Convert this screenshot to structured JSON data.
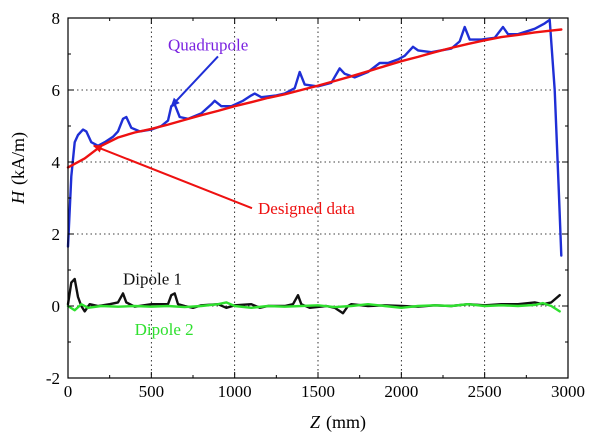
{
  "chart_data": {
    "type": "line",
    "xlabel": {
      "symbol": "Z",
      "unit": "(mm)"
    },
    "ylabel": {
      "symbol": "H",
      "unit": "(kA/m)"
    },
    "xlim": [
      0,
      3000
    ],
    "ylim": [
      -2,
      8
    ],
    "xticks": [
      0,
      500,
      1000,
      1500,
      2000,
      2500,
      3000
    ],
    "yticks": [
      -2,
      0,
      2,
      4,
      6,
      8
    ],
    "x_tick_labels": [
      "0",
      "500",
      "1000",
      "1500",
      "2000",
      "2500",
      "3000"
    ],
    "y_tick_labels": [
      "-2",
      "0",
      "2",
      "4",
      "6",
      "8"
    ],
    "grid": {
      "vertical": true,
      "horizontal": true,
      "style": "dotted",
      "vertical_at": [
        500,
        1000,
        1500,
        2000,
        2500
      ],
      "horizontal_at": [
        0,
        2,
        4,
        6
      ]
    },
    "series": [
      {
        "name": "Quadrupole",
        "color": "#1f2fd6",
        "points": [
          [
            0,
            1.65
          ],
          [
            20,
            3.6
          ],
          [
            40,
            4.55
          ],
          [
            60,
            4.75
          ],
          [
            90,
            4.9
          ],
          [
            110,
            4.85
          ],
          [
            140,
            4.55
          ],
          [
            180,
            4.45
          ],
          [
            220,
            4.55
          ],
          [
            270,
            4.7
          ],
          [
            300,
            4.85
          ],
          [
            330,
            5.2
          ],
          [
            350,
            5.25
          ],
          [
            380,
            4.95
          ],
          [
            430,
            4.85
          ],
          [
            500,
            4.9
          ],
          [
            560,
            5.0
          ],
          [
            600,
            5.15
          ],
          [
            620,
            5.55
          ],
          [
            640,
            5.6
          ],
          [
            670,
            5.25
          ],
          [
            720,
            5.2
          ],
          [
            800,
            5.35
          ],
          [
            860,
            5.6
          ],
          [
            880,
            5.7
          ],
          [
            920,
            5.55
          ],
          [
            980,
            5.55
          ],
          [
            1050,
            5.7
          ],
          [
            1100,
            5.85
          ],
          [
            1120,
            5.9
          ],
          [
            1160,
            5.8
          ],
          [
            1250,
            5.85
          ],
          [
            1300,
            5.9
          ],
          [
            1360,
            6.05
          ],
          [
            1390,
            6.5
          ],
          [
            1420,
            6.15
          ],
          [
            1500,
            6.1
          ],
          [
            1580,
            6.2
          ],
          [
            1630,
            6.6
          ],
          [
            1660,
            6.45
          ],
          [
            1720,
            6.35
          ],
          [
            1800,
            6.5
          ],
          [
            1870,
            6.75
          ],
          [
            1920,
            6.75
          ],
          [
            1980,
            6.85
          ],
          [
            2020,
            6.95
          ],
          [
            2070,
            7.2
          ],
          [
            2100,
            7.1
          ],
          [
            2180,
            7.05
          ],
          [
            2300,
            7.15
          ],
          [
            2350,
            7.35
          ],
          [
            2380,
            7.75
          ],
          [
            2410,
            7.4
          ],
          [
            2480,
            7.4
          ],
          [
            2560,
            7.45
          ],
          [
            2610,
            7.75
          ],
          [
            2640,
            7.55
          ],
          [
            2700,
            7.55
          ],
          [
            2800,
            7.7
          ],
          [
            2860,
            7.85
          ],
          [
            2890,
            7.95
          ],
          [
            2920,
            6.0
          ],
          [
            2945,
            3.2
          ],
          [
            2960,
            1.4
          ]
        ]
      },
      {
        "name": "Designed data",
        "color": "#ee1111",
        "points": [
          [
            0,
            3.85
          ],
          [
            100,
            4.1
          ],
          [
            200,
            4.45
          ],
          [
            300,
            4.68
          ],
          [
            400,
            4.82
          ],
          [
            500,
            4.92
          ],
          [
            600,
            5.04
          ],
          [
            700,
            5.17
          ],
          [
            800,
            5.3
          ],
          [
            900,
            5.42
          ],
          [
            1000,
            5.55
          ],
          [
            1100,
            5.66
          ],
          [
            1200,
            5.78
          ],
          [
            1300,
            5.88
          ],
          [
            1400,
            6.0
          ],
          [
            1500,
            6.12
          ],
          [
            1600,
            6.25
          ],
          [
            1700,
            6.38
          ],
          [
            1800,
            6.52
          ],
          [
            1900,
            6.66
          ],
          [
            2000,
            6.8
          ],
          [
            2100,
            6.92
          ],
          [
            2200,
            7.05
          ],
          [
            2300,
            7.17
          ],
          [
            2400,
            7.28
          ],
          [
            2500,
            7.38
          ],
          [
            2600,
            7.47
          ],
          [
            2700,
            7.53
          ],
          [
            2800,
            7.6
          ],
          [
            2900,
            7.65
          ],
          [
            2960,
            7.68
          ]
        ]
      },
      {
        "name": "Dipole 1",
        "color": "#111111",
        "points": [
          [
            0,
            0.05
          ],
          [
            20,
            0.65
          ],
          [
            40,
            0.75
          ],
          [
            60,
            0.25
          ],
          [
            80,
            0.0
          ],
          [
            100,
            -0.15
          ],
          [
            130,
            0.05
          ],
          [
            180,
            0.0
          ],
          [
            250,
            0.05
          ],
          [
            300,
            0.1
          ],
          [
            330,
            0.35
          ],
          [
            350,
            0.1
          ],
          [
            400,
            -0.02
          ],
          [
            500,
            0.05
          ],
          [
            600,
            0.05
          ],
          [
            620,
            0.3
          ],
          [
            640,
            0.35
          ],
          [
            660,
            0.05
          ],
          [
            700,
            0.0
          ],
          [
            750,
            -0.05
          ],
          [
            800,
            0.02
          ],
          [
            900,
            0.05
          ],
          [
            950,
            -0.05
          ],
          [
            1000,
            0.02
          ],
          [
            1100,
            0.05
          ],
          [
            1150,
            -0.05
          ],
          [
            1200,
            0.0
          ],
          [
            1300,
            0.0
          ],
          [
            1350,
            0.05
          ],
          [
            1380,
            0.3
          ],
          [
            1400,
            0.05
          ],
          [
            1450,
            -0.05
          ],
          [
            1550,
            0.0
          ],
          [
            1600,
            -0.05
          ],
          [
            1650,
            -0.2
          ],
          [
            1680,
            0.0
          ],
          [
            1700,
            0.05
          ],
          [
            1800,
            0.0
          ],
          [
            1900,
            0.02
          ],
          [
            2000,
            0.0
          ],
          [
            2100,
            -0.02
          ],
          [
            2200,
            0.02
          ],
          [
            2300,
            0.0
          ],
          [
            2400,
            0.05
          ],
          [
            2500,
            0.02
          ],
          [
            2600,
            0.05
          ],
          [
            2700,
            0.05
          ],
          [
            2800,
            0.1
          ],
          [
            2850,
            0.05
          ],
          [
            2900,
            0.1
          ],
          [
            2950,
            0.3
          ]
        ]
      },
      {
        "name": "Dipole 2",
        "color": "#2fe02f",
        "points": [
          [
            0,
            0.0
          ],
          [
            40,
            -0.12
          ],
          [
            80,
            0.05
          ],
          [
            120,
            -0.05
          ],
          [
            200,
            0.0
          ],
          [
            300,
            -0.02
          ],
          [
            400,
            0.0
          ],
          [
            500,
            -0.02
          ],
          [
            600,
            0.0
          ],
          [
            700,
            -0.03
          ],
          [
            800,
            0.0
          ],
          [
            900,
            0.05
          ],
          [
            950,
            0.1
          ],
          [
            1000,
            0.0
          ],
          [
            1100,
            -0.05
          ],
          [
            1200,
            0.0
          ],
          [
            1300,
            -0.02
          ],
          [
            1400,
            0.0
          ],
          [
            1500,
            0.02
          ],
          [
            1600,
            -0.03
          ],
          [
            1700,
            0.0
          ],
          [
            1800,
            0.05
          ],
          [
            1900,
            0.0
          ],
          [
            2000,
            -0.05
          ],
          [
            2100,
            0.0
          ],
          [
            2200,
            0.02
          ],
          [
            2300,
            0.0
          ],
          [
            2400,
            0.05
          ],
          [
            2500,
            0.0
          ],
          [
            2600,
            0.02
          ],
          [
            2700,
            0.0
          ],
          [
            2800,
            0.03
          ],
          [
            2850,
            0.08
          ],
          [
            2900,
            0.0
          ],
          [
            2950,
            -0.15
          ]
        ]
      }
    ],
    "annotations": [
      {
        "text": "Quadrupole",
        "color": "#7a22e0",
        "at": [
          600,
          7.1
        ],
        "arrow_to": [
          620,
          5.55
        ],
        "arrow_color": "#1f2fd6"
      },
      {
        "text": "Designed data",
        "color": "#ee1111",
        "at": [
          1140,
          2.55
        ],
        "arrow_to": [
          155,
          4.45
        ],
        "arrow_color": "#ee1111"
      },
      {
        "text": "Dipole 1",
        "color": "#111111",
        "at": [
          330,
          0.6
        ]
      },
      {
        "text": "Dipole 2",
        "color": "#2fe02f",
        "at": [
          400,
          -0.8
        ]
      }
    ]
  }
}
